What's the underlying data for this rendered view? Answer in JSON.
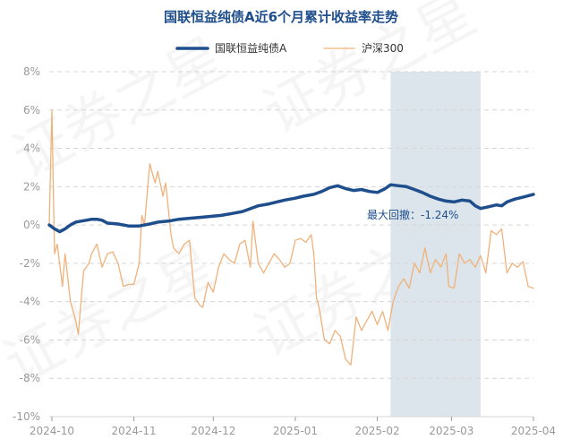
{
  "chart_data": {
    "type": "line",
    "title": "国联恒益纯债A近6个月累计收益率走势",
    "xlabel": "",
    "ylabel": "",
    "ylim": [
      -10,
      8
    ],
    "yticks": [
      8,
      6,
      4,
      2,
      0,
      -2,
      -4,
      -6,
      -8,
      -10
    ],
    "ytick_suffix": "%",
    "x_start": "2024-09-30",
    "x_end": "2025-04-01",
    "xticks": [
      {
        "date": "2024-10-01",
        "label": "2024-10"
      },
      {
        "date": "2024-11-01",
        "label": "2024-11"
      },
      {
        "date": "2024-12-01",
        "label": "2024-12"
      },
      {
        "date": "2025-01-01",
        "label": "2025-01"
      },
      {
        "date": "2025-02-01",
        "label": "2025-02"
      },
      {
        "date": "2025-03-01",
        "label": "2025-03"
      },
      {
        "date": "2025-04-01",
        "label": "2025-04"
      }
    ],
    "grid": true,
    "legend_position": "top-center",
    "watermark": "证券之星",
    "max_drawdown": {
      "label": "最大回撤：-1.24%",
      "start": "2025-02-06",
      "end": "2025-03-12"
    },
    "series": [
      {
        "name": "国联恒益纯债A",
        "color": "#1f4e8c",
        "points": [
          [
            "2024-09-30",
            0.0
          ],
          [
            "2024-10-02",
            -0.2
          ],
          [
            "2024-10-04",
            -0.35
          ],
          [
            "2024-10-06",
            -0.2
          ],
          [
            "2024-10-08",
            0.0
          ],
          [
            "2024-10-10",
            0.15
          ],
          [
            "2024-10-12",
            0.2
          ],
          [
            "2024-10-14",
            0.25
          ],
          [
            "2024-10-16",
            0.3
          ],
          [
            "2024-10-18",
            0.3
          ],
          [
            "2024-10-20",
            0.25
          ],
          [
            "2024-10-22",
            0.1
          ],
          [
            "2024-10-26",
            0.05
          ],
          [
            "2024-10-30",
            -0.05
          ],
          [
            "2024-11-03",
            -0.05
          ],
          [
            "2024-11-07",
            0.05
          ],
          [
            "2024-11-10",
            0.15
          ],
          [
            "2024-11-14",
            0.2
          ],
          [
            "2024-11-18",
            0.3
          ],
          [
            "2024-11-22",
            0.35
          ],
          [
            "2024-11-26",
            0.4
          ],
          [
            "2024-11-30",
            0.45
          ],
          [
            "2024-12-04",
            0.5
          ],
          [
            "2024-12-08",
            0.6
          ],
          [
            "2024-12-12",
            0.7
          ],
          [
            "2024-12-15",
            0.85
          ],
          [
            "2024-12-18",
            1.0
          ],
          [
            "2024-12-22",
            1.1
          ],
          [
            "2024-12-25",
            1.2
          ],
          [
            "2024-12-28",
            1.3
          ],
          [
            "2025-01-01",
            1.4
          ],
          [
            "2025-01-04",
            1.5
          ],
          [
            "2025-01-08",
            1.6
          ],
          [
            "2025-01-11",
            1.75
          ],
          [
            "2025-01-14",
            1.95
          ],
          [
            "2025-01-17",
            2.05
          ],
          [
            "2025-01-20",
            1.9
          ],
          [
            "2025-01-23",
            1.8
          ],
          [
            "2025-01-26",
            1.85
          ],
          [
            "2025-01-29",
            1.75
          ],
          [
            "2025-02-01",
            1.7
          ],
          [
            "2025-02-04",
            1.9
          ],
          [
            "2025-02-06",
            2.1
          ],
          [
            "2025-02-09",
            2.05
          ],
          [
            "2025-02-12",
            2.0
          ],
          [
            "2025-02-15",
            1.85
          ],
          [
            "2025-02-18",
            1.7
          ],
          [
            "2025-02-21",
            1.5
          ],
          [
            "2025-02-24",
            1.35
          ],
          [
            "2025-02-27",
            1.25
          ],
          [
            "2025-03-02",
            1.2
          ],
          [
            "2025-03-05",
            1.3
          ],
          [
            "2025-03-08",
            1.25
          ],
          [
            "2025-03-10",
            1.0
          ],
          [
            "2025-03-12",
            0.86
          ],
          [
            "2025-03-15",
            0.95
          ],
          [
            "2025-03-18",
            1.05
          ],
          [
            "2025-03-20",
            1.0
          ],
          [
            "2025-03-22",
            1.2
          ],
          [
            "2025-03-25",
            1.35
          ],
          [
            "2025-03-28",
            1.45
          ],
          [
            "2025-04-01",
            1.6
          ]
        ]
      },
      {
        "name": "沪深300",
        "color": "#f0b27a",
        "points": [
          [
            "2024-09-30",
            0.0
          ],
          [
            "2024-10-01",
            6.0
          ],
          [
            "2024-10-02",
            -1.5
          ],
          [
            "2024-10-03",
            -1.0
          ],
          [
            "2024-10-05",
            -3.2
          ],
          [
            "2024-10-06",
            -1.5
          ],
          [
            "2024-10-08",
            -4.0
          ],
          [
            "2024-10-10",
            -5.0
          ],
          [
            "2024-10-11",
            -5.7
          ],
          [
            "2024-10-13",
            -2.4
          ],
          [
            "2024-10-15",
            -2.0
          ],
          [
            "2024-10-16",
            -1.5
          ],
          [
            "2024-10-18",
            -1.0
          ],
          [
            "2024-10-20",
            -2.2
          ],
          [
            "2024-10-22",
            -1.5
          ],
          [
            "2024-10-24",
            -1.4
          ],
          [
            "2024-10-26",
            -2.0
          ],
          [
            "2024-10-28",
            -3.2
          ],
          [
            "2024-10-30",
            -3.1
          ],
          [
            "2024-11-01",
            -3.1
          ],
          [
            "2024-11-03",
            -2.0
          ],
          [
            "2024-11-04",
            0.5
          ],
          [
            "2024-11-05",
            0.0
          ],
          [
            "2024-11-07",
            3.2
          ],
          [
            "2024-11-09",
            2.2
          ],
          [
            "2024-11-10",
            2.8
          ],
          [
            "2024-11-12",
            1.5
          ],
          [
            "2024-11-13",
            2.2
          ],
          [
            "2024-11-15",
            -0.5
          ],
          [
            "2024-11-16",
            -1.2
          ],
          [
            "2024-11-18",
            -1.5
          ],
          [
            "2024-11-20",
            -1.0
          ],
          [
            "2024-11-22",
            -0.8
          ],
          [
            "2024-11-24",
            -3.8
          ],
          [
            "2024-11-26",
            -4.2
          ],
          [
            "2024-11-27",
            -4.3
          ],
          [
            "2024-11-29",
            -3.0
          ],
          [
            "2024-12-01",
            -3.5
          ],
          [
            "2024-12-03",
            -2.2
          ],
          [
            "2024-12-05",
            -1.5
          ],
          [
            "2024-12-07",
            -1.8
          ],
          [
            "2024-12-09",
            -2.0
          ],
          [
            "2024-12-11",
            -1.0
          ],
          [
            "2024-12-13",
            -0.8
          ],
          [
            "2024-12-15",
            -2.2
          ],
          [
            "2024-12-16",
            0.2
          ],
          [
            "2024-12-18",
            -2.0
          ],
          [
            "2024-12-20",
            -2.5
          ],
          [
            "2024-12-22",
            -2.0
          ],
          [
            "2024-12-24",
            -1.5
          ],
          [
            "2024-12-26",
            -1.8
          ],
          [
            "2024-12-28",
            -2.2
          ],
          [
            "2024-12-30",
            -2.0
          ],
          [
            "2025-01-01",
            -0.8
          ],
          [
            "2025-01-03",
            -0.7
          ],
          [
            "2025-01-05",
            -0.9
          ],
          [
            "2025-01-07",
            -0.5
          ],
          [
            "2025-01-08",
            -1.5
          ],
          [
            "2025-01-09",
            -3.8
          ],
          [
            "2025-01-10",
            -4.3
          ],
          [
            "2025-01-12",
            -6.0
          ],
          [
            "2025-01-14",
            -6.2
          ],
          [
            "2025-01-16",
            -5.5
          ],
          [
            "2025-01-18",
            -5.8
          ],
          [
            "2025-01-20",
            -7.0
          ],
          [
            "2025-01-22",
            -7.3
          ],
          [
            "2025-01-24",
            -4.8
          ],
          [
            "2025-01-26",
            -5.5
          ],
          [
            "2025-01-28",
            -5.0
          ],
          [
            "2025-01-30",
            -4.5
          ],
          [
            "2025-02-01",
            -5.2
          ],
          [
            "2025-02-03",
            -4.5
          ],
          [
            "2025-02-05",
            -5.5
          ],
          [
            "2025-02-07",
            -4.0
          ],
          [
            "2025-02-09",
            -3.2
          ],
          [
            "2025-02-11",
            -2.8
          ],
          [
            "2025-02-13",
            -3.3
          ],
          [
            "2025-02-15",
            -2.0
          ],
          [
            "2025-02-17",
            -2.5
          ],
          [
            "2025-02-19",
            -1.2
          ],
          [
            "2025-02-21",
            -2.5
          ],
          [
            "2025-02-23",
            -1.8
          ],
          [
            "2025-02-25",
            -2.2
          ],
          [
            "2025-02-27",
            -1.5
          ],
          [
            "2025-02-28",
            -3.2
          ],
          [
            "2025-03-02",
            -3.3
          ],
          [
            "2025-03-04",
            -1.5
          ],
          [
            "2025-03-06",
            -2.0
          ],
          [
            "2025-03-08",
            -1.8
          ],
          [
            "2025-03-10",
            -2.2
          ],
          [
            "2025-03-12",
            -1.6
          ],
          [
            "2025-03-14",
            -2.5
          ],
          [
            "2025-03-16",
            -0.3
          ],
          [
            "2025-03-18",
            -0.5
          ],
          [
            "2025-03-20",
            -0.2
          ],
          [
            "2025-03-22",
            -2.5
          ],
          [
            "2025-03-24",
            -2.0
          ],
          [
            "2025-03-26",
            -2.2
          ],
          [
            "2025-03-28",
            -1.9
          ],
          [
            "2025-03-30",
            -3.2
          ],
          [
            "2025-04-01",
            -3.3
          ]
        ]
      }
    ]
  }
}
